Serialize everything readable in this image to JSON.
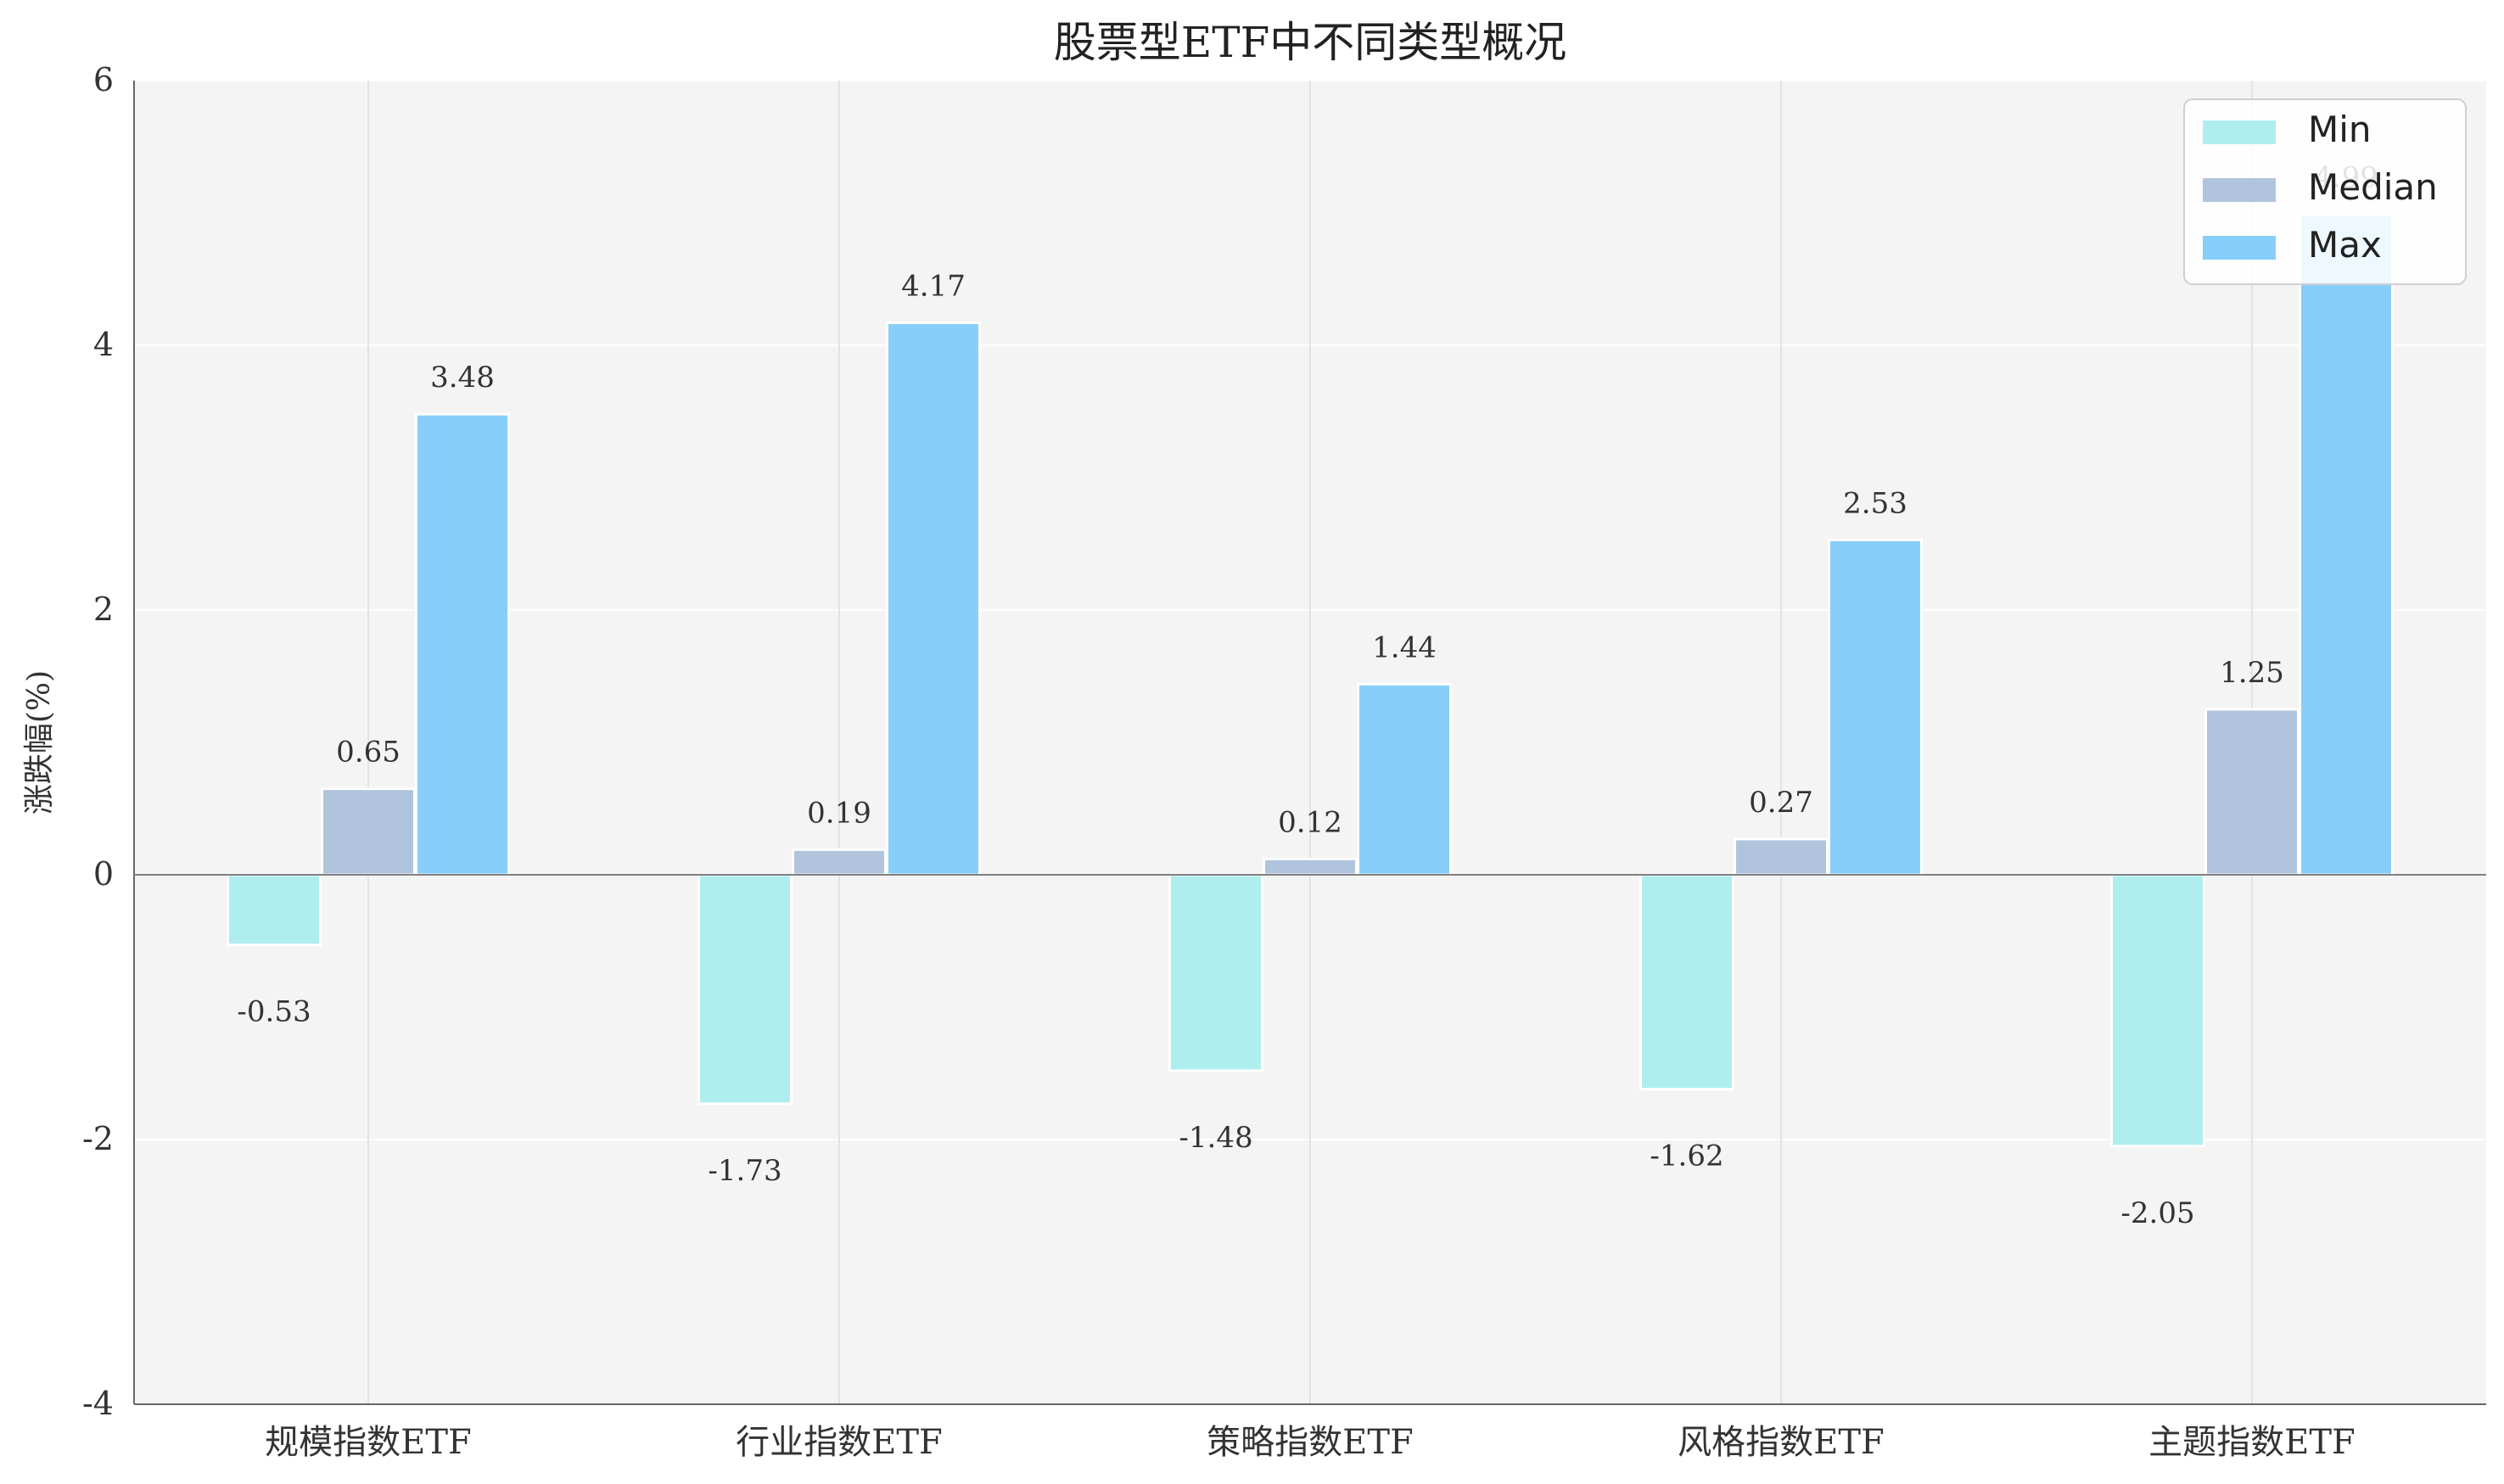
{
  "chart_data": {
    "type": "bar",
    "title": "股票型ETF中不同类型概况",
    "xlabel": "",
    "ylabel": "涨跌幅(%)",
    "categories": [
      "规模指数ETF",
      "行业指数ETF",
      "策略指数ETF",
      "风格指数ETF",
      "主题指数ETF"
    ],
    "series": [
      {
        "name": "Min",
        "values": [
          -0.53,
          -1.73,
          -1.48,
          -1.62,
          -2.05
        ],
        "color": "#afeeee"
      },
      {
        "name": "Median",
        "values": [
          0.65,
          0.19,
          0.12,
          0.27,
          1.25
        ],
        "color": "#b0c4de"
      },
      {
        "name": "Max",
        "values": [
          3.48,
          4.17,
          1.44,
          2.53,
          4.99
        ],
        "color": "#87cefa"
      }
    ],
    "ylim": [
      -4,
      6
    ],
    "yticks": [
      -4,
      -2,
      0,
      2,
      4,
      6
    ],
    "grid": true,
    "legend_position": "top-right",
    "plot_background": "#f4f4f4",
    "axis_color": "#666666"
  }
}
